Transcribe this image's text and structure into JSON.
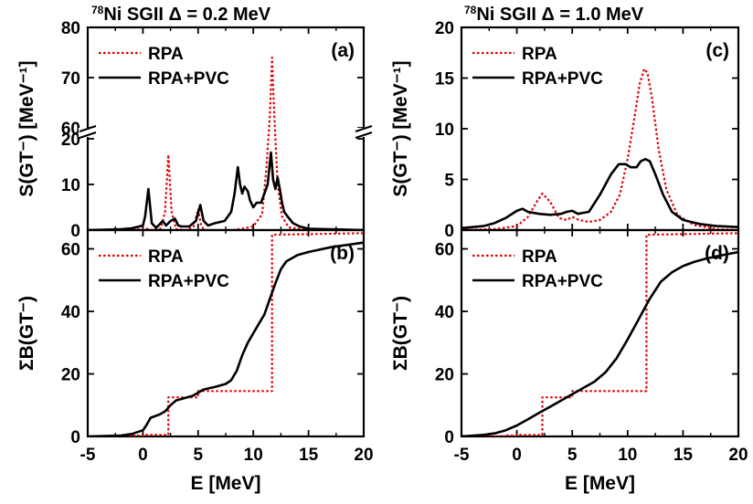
{
  "figure": {
    "title_left_sup": "78",
    "title_left": "Ni  SGII  Δ = 0.2 MeV",
    "title_right_sup": "78",
    "title_right": "Ni  SGII  Δ = 1.0 MeV"
  },
  "colors": {
    "rpa": "#e00000",
    "pvc": "#000000",
    "axis": "#000000"
  },
  "chart_data": [
    {
      "id": "a",
      "type": "line",
      "panel_label": "(a)",
      "ylabel": "S(GT⁻) [MeV⁻¹]",
      "xlim": [
        -5,
        20
      ],
      "ylim_lower": [
        0,
        25
      ],
      "ylim_upper": [
        60,
        80
      ],
      "y_break": true,
      "y_ticks": [
        0,
        10,
        20,
        60,
        70,
        80
      ],
      "x_ticks": [
        -5,
        0,
        5,
        10,
        15,
        20
      ],
      "legend": {
        "position": "top-left"
      },
      "series": [
        {
          "name": "RPA",
          "style": "dotted",
          "x": [
            -5,
            -1.2,
            -1.0,
            0.2,
            0.4,
            0.6,
            1.6,
            2.0,
            2.3,
            2.6,
            3.0,
            4.0,
            4.6,
            5.0,
            5.3,
            5.6,
            6.0,
            8.0,
            9.0,
            10.0,
            10.8,
            11.2,
            11.5,
            11.7,
            11.9,
            12.2,
            12.6,
            13.2,
            15.0,
            20.0
          ],
          "y": [
            0,
            0,
            0.4,
            0,
            0.3,
            0,
            0.3,
            4.0,
            16.5,
            4.0,
            0.2,
            0,
            0.8,
            4.5,
            0.8,
            0,
            0,
            0,
            0.3,
            0.8,
            3.5,
            14.0,
            30,
            74,
            30,
            10,
            3.0,
            0.6,
            0,
            0
          ]
        },
        {
          "name": "RPA+PVC",
          "style": "solid",
          "x": [
            -5,
            -2,
            -1.0,
            0.0,
            0.2,
            0.5,
            0.8,
            1.2,
            1.6,
            1.8,
            2.1,
            2.5,
            2.9,
            3.2,
            3.5,
            4.2,
            4.8,
            5.2,
            5.5,
            5.9,
            6.5,
            7.4,
            8.0,
            8.3,
            8.6,
            8.8,
            9.0,
            9.2,
            9.5,
            9.7,
            10.0,
            10.3,
            10.7,
            11.0,
            11.3,
            11.6,
            11.8,
            12.0,
            12.2,
            12.4,
            12.6,
            12.8,
            13.1,
            13.6,
            14.2,
            15.0,
            20.0
          ],
          "y": [
            0,
            0.2,
            0.4,
            1.0,
            3.0,
            9.0,
            1.5,
            0.5,
            1.5,
            2.0,
            1.0,
            2.0,
            2.5,
            1.0,
            0.8,
            0.8,
            2.0,
            5.5,
            2.0,
            1.0,
            1.5,
            2.0,
            4.0,
            8.0,
            13.8,
            10.0,
            8.0,
            9.5,
            8.5,
            6.5,
            5.0,
            6.0,
            6.0,
            8.0,
            10.0,
            17.0,
            11.0,
            9.0,
            11.5,
            9.0,
            6.0,
            4.0,
            3.0,
            1.5,
            0.8,
            0.3,
            0
          ]
        }
      ]
    },
    {
      "id": "b",
      "type": "line",
      "panel_label": "(b)",
      "ylabel": "ΣB(GT⁻)",
      "xlabel": "E [MeV]",
      "xlim": [
        -5,
        20
      ],
      "ylim": [
        0,
        66
      ],
      "y_ticks": [
        0,
        20,
        40,
        60
      ],
      "x_ticks": [
        -5,
        0,
        5,
        10,
        15,
        20
      ],
      "legend": {
        "position": "top-left"
      },
      "series": [
        {
          "name": "RPA",
          "style": "dotted",
          "x": [
            -5,
            -1.0,
            -1.0,
            0.2,
            0.2,
            2.3,
            2.3,
            5.0,
            5.0,
            11.7,
            11.7,
            20
          ],
          "y": [
            0,
            0,
            0.3,
            0.3,
            0.5,
            0.5,
            12.5,
            12.5,
            14.5,
            14.5,
            64.5,
            65
          ]
        },
        {
          "name": "RPA+PVC",
          "style": "solid",
          "x": [
            -5,
            -2,
            -1,
            0,
            0.3,
            0.7,
            1.5,
            2.0,
            2.5,
            3.0,
            4.0,
            4.5,
            5.0,
            5.5,
            6.5,
            7.5,
            8.0,
            8.5,
            9.0,
            9.5,
            10.0,
            10.5,
            11.0,
            11.5,
            12.0,
            12.5,
            13.0,
            14.0,
            15.0,
            17.0,
            20.0
          ],
          "y": [
            0,
            0.3,
            0.8,
            2.0,
            3.5,
            6.0,
            7.0,
            8.0,
            10.0,
            11.5,
            12.5,
            13.0,
            14.0,
            15.0,
            15.8,
            16.8,
            18.0,
            21.0,
            26.0,
            30.0,
            33.0,
            36.0,
            39.0,
            44.0,
            49.0,
            53.5,
            56.0,
            58.0,
            59.0,
            60.5,
            62.0
          ]
        }
      ]
    },
    {
      "id": "c",
      "type": "line",
      "panel_label": "(c)",
      "ylabel": "S(GT⁻) [MeV⁻¹]",
      "xlim": [
        -5,
        20
      ],
      "ylim": [
        0,
        20
      ],
      "y_ticks": [
        0,
        5,
        10,
        15,
        20
      ],
      "x_ticks": [
        -5,
        0,
        5,
        10,
        15,
        20
      ],
      "legend": {
        "position": "top-left"
      },
      "series": [
        {
          "name": "RPA",
          "style": "dotted",
          "x": [
            -5,
            -2,
            0,
            1.0,
            1.8,
            2.3,
            3.0,
            3.8,
            4.5,
            5.0,
            5.6,
            6.5,
            7.5,
            8.5,
            9.3,
            10.0,
            10.6,
            11.1,
            11.5,
            11.8,
            12.2,
            12.8,
            13.5,
            14.5,
            16.0,
            18.0,
            20.0
          ],
          "y": [
            0,
            0.1,
            0.4,
            1.3,
            2.8,
            3.6,
            2.8,
            1.2,
            1.0,
            1.3,
            1.0,
            0.8,
            1.0,
            1.8,
            3.5,
            7.0,
            11.0,
            14.5,
            15.9,
            15.5,
            13.0,
            8.0,
            4.0,
            1.5,
            0.5,
            0.1,
            0
          ]
        },
        {
          "name": "RPA+PVC",
          "style": "solid",
          "x": [
            -5,
            -3,
            -2,
            -1,
            0,
            0.5,
            1.0,
            2.0,
            3.0,
            4.0,
            4.5,
            5.0,
            5.5,
            6.5,
            7.5,
            8.5,
            9.2,
            9.8,
            10.3,
            10.8,
            11.2,
            11.6,
            12.0,
            12.5,
            13.2,
            14.0,
            15.0,
            16.5,
            18.0,
            20.0
          ],
          "y": [
            0.2,
            0.4,
            0.7,
            1.2,
            1.9,
            2.1,
            1.8,
            1.6,
            1.5,
            1.6,
            1.8,
            1.9,
            1.6,
            1.8,
            3.5,
            5.5,
            6.5,
            6.5,
            6.2,
            6.2,
            6.8,
            7.0,
            6.8,
            5.5,
            3.5,
            1.8,
            1.0,
            0.6,
            0.4,
            0.3
          ]
        }
      ]
    },
    {
      "id": "d",
      "type": "line",
      "panel_label": "(d)",
      "ylabel": "ΣB(GT⁻)",
      "xlabel": "E [MeV]",
      "xlim": [
        -5,
        20
      ],
      "ylim": [
        0,
        66
      ],
      "y_ticks": [
        0,
        20,
        40,
        60
      ],
      "x_ticks": [
        -5,
        0,
        5,
        10,
        15,
        20
      ],
      "legend": {
        "position": "top-left"
      },
      "series": [
        {
          "name": "RPA",
          "style": "dotted",
          "x": [
            -5,
            -1.0,
            -1.0,
            0.2,
            0.2,
            2.3,
            2.3,
            5.0,
            5.0,
            11.7,
            11.7,
            20
          ],
          "y": [
            0,
            0,
            0.3,
            0.3,
            0.5,
            0.5,
            12.5,
            12.5,
            14.5,
            14.5,
            64.5,
            65
          ]
        },
        {
          "name": "RPA+PVC",
          "style": "solid",
          "x": [
            -5,
            -3,
            -2,
            -1,
            0,
            1,
            2,
            3,
            4,
            5,
            6,
            7,
            8,
            9,
            10,
            11,
            12,
            13,
            14,
            15,
            16,
            17,
            18,
            19,
            20
          ],
          "y": [
            0,
            0.5,
            1.0,
            2.0,
            3.5,
            5.5,
            7.5,
            9.5,
            11.5,
            13.5,
            15.5,
            17.5,
            20.5,
            25.0,
            31.0,
            37.5,
            44.0,
            49.5,
            52.5,
            54.5,
            55.8,
            56.8,
            57.6,
            58.3,
            59.0
          ]
        }
      ]
    }
  ]
}
